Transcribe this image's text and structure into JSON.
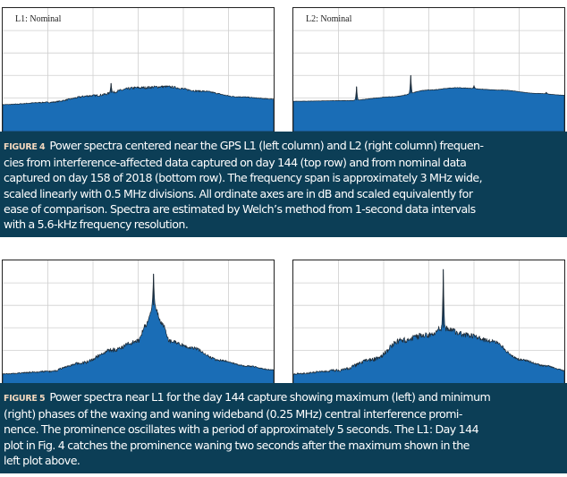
{
  "figure4": {
    "tag": "FIGURE 4",
    "caption_lines": [
      "Power spectra centered near the GPS L1 (left column) and L2 (right column) frequen-",
      "cies from interference-affected data captured on day 144 (top row) and from nominal data",
      "captured on day 158 of 2018 (bottom row). The frequency span is approximately 3 MHz wide,",
      "scaled linearly with 0.5 MHz divisions. All ordinate axes are in dB and scaled equivalently for",
      "ease of comparison. Spectra are estimated by Welch’s method from 1-second data intervals",
      "with a 5.6-kHz frequency resolution."
    ]
  },
  "figure5": {
    "tag": "FIGURE 5",
    "caption_lines": [
      "Power spectra near L1 for the day 144 capture showing maximum (left) and minimum",
      "(right) phases of the waxing and waning wideband (0.25 MHz) central interference promi-",
      "nence. The prominence oscillates with a period of approximately 5 seconds. The L1: Day 144",
      "plot in Fig. 4 catches the prominence waning two seconds after the maximum shown in the",
      "left plot above."
    ]
  },
  "colors": {
    "fill": "#1a6db6",
    "edge": "#1c2a36",
    "grid": "#cfcfcf",
    "caption_bg": "#0c3e56"
  },
  "chart_data": [
    {
      "type": "area",
      "label": "L1: Nominal",
      "x_span_mhz": [
        -1.5,
        1.5
      ],
      "x_division_mhz": 0.5,
      "ylim": [
        0,
        5.5
      ],
      "grid": true,
      "envelope": [
        [
          -1.5,
          1.2
        ],
        [
          -1.0,
          1.3
        ],
        [
          -0.5,
          1.6
        ],
        [
          0,
          1.95
        ],
        [
          0.3,
          2.0
        ],
        [
          0.7,
          1.8
        ],
        [
          1.1,
          1.55
        ],
        [
          1.5,
          1.45
        ]
      ],
      "spikes": [
        [
          -0.3,
          2.15
        ]
      ],
      "roughness": 0.06
    },
    {
      "type": "area",
      "label": "L2: Nominal",
      "x_span_mhz": [
        -1.5,
        1.5
      ],
      "x_division_mhz": 0.5,
      "ylim": [
        0,
        5.5
      ],
      "grid": true,
      "envelope": [
        [
          -1.5,
          1.35
        ],
        [
          -0.9,
          1.38
        ],
        [
          -0.4,
          1.55
        ],
        [
          0,
          1.85
        ],
        [
          0.3,
          1.95
        ],
        [
          0.8,
          1.85
        ],
        [
          1.2,
          1.7
        ],
        [
          1.5,
          1.62
        ]
      ],
      "spikes": [
        [
          -0.8,
          2.0
        ],
        [
          -0.2,
          2.5
        ],
        [
          0.5,
          2.05
        ],
        [
          1.3,
          1.75
        ]
      ],
      "roughness": 0.015
    },
    {
      "type": "area",
      "x_span_mhz": [
        -1.5,
        1.5
      ],
      "x_division_mhz": 0.5,
      "ylim": [
        0,
        5.5
      ],
      "grid": true,
      "envelope": [
        [
          -1.5,
          0.45
        ],
        [
          -1.0,
          0.55
        ],
        [
          -0.6,
          0.95
        ],
        [
          -0.3,
          1.5
        ],
        [
          0,
          1.9
        ],
        [
          0.08,
          2.6
        ],
        [
          0.17,
          3.5
        ],
        [
          0.28,
          2.6
        ],
        [
          0.35,
          1.9
        ],
        [
          0.6,
          1.6
        ],
        [
          0.9,
          1.05
        ],
        [
          1.2,
          0.8
        ],
        [
          1.5,
          0.62
        ]
      ],
      "spikes": [
        [
          0.17,
          4.9
        ]
      ],
      "roughness": 0.1
    },
    {
      "type": "area",
      "x_span_mhz": [
        -1.5,
        1.5
      ],
      "x_division_mhz": 0.5,
      "ylim": [
        0,
        5.5
      ],
      "grid": true,
      "envelope": [
        [
          -1.5,
          0.45
        ],
        [
          -1.0,
          0.6
        ],
        [
          -0.6,
          1.1
        ],
        [
          -0.3,
          1.95
        ],
        [
          0,
          2.2
        ],
        [
          0.16,
          2.5
        ],
        [
          0.4,
          2.2
        ],
        [
          0.7,
          1.9
        ],
        [
          1.0,
          1.1
        ],
        [
          1.3,
          0.8
        ],
        [
          1.5,
          0.6
        ]
      ],
      "spikes": [
        [
          0.16,
          5.1
        ]
      ],
      "roughness": 0.14
    }
  ]
}
